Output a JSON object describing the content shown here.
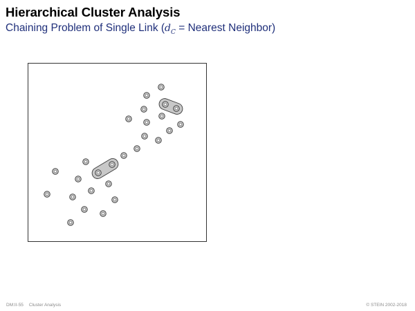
{
  "slide": {
    "title": "Hierarchical Cluster Analysis",
    "subtitle_prefix": "Chaining Problem of Single Link (",
    "subtitle_math_var": "d",
    "subtitle_math_sub": "C",
    "subtitle_suffix": " = Nearest Neighbor)"
  },
  "footer": {
    "slide_number": "DM:II-55",
    "section": "Cluster Analysis",
    "copyright": "© STEIN 2002-2018"
  },
  "figure": {
    "point_count": 32,
    "highlighted_pair_count": 2,
    "colors": {
      "frame": "#333333",
      "point_fill": "#c4c4c4",
      "point_edge": "#3a3a3a",
      "point_center": "#ffffff",
      "link_fill": "#c8c8c8"
    }
  }
}
